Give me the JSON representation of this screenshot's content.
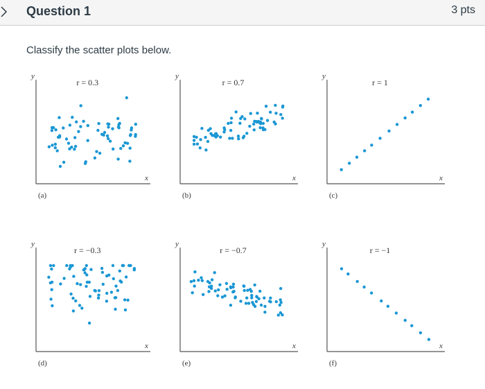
{
  "question": {
    "title": "Question 1",
    "points": "3 pts",
    "prompt": "Classify the scatter plots below."
  },
  "colors": {
    "dot": "#1a97d4",
    "axis": "#555555",
    "header_bg": "#f5f5f5",
    "text": "#2d3b45"
  },
  "icons": {
    "collapse": "chevron-right-icon"
  },
  "chart_data": [
    {
      "type": "scatter",
      "panel_label": "(a)",
      "r_label": "r = 0.3",
      "y_axis_label": "y",
      "x_axis_label": "x",
      "correlation": 0.3
    },
    {
      "type": "scatter",
      "panel_label": "(b)",
      "r_label": "r = 0.7",
      "y_axis_label": "y",
      "x_axis_label": "x",
      "correlation": 0.7
    },
    {
      "type": "scatter",
      "panel_label": "(c)",
      "r_label": "r = 1",
      "y_axis_label": "y",
      "x_axis_label": "x",
      "correlation": 1
    },
    {
      "type": "scatter",
      "panel_label": "(d)",
      "r_label": "r = −0.3",
      "y_axis_label": "y",
      "x_axis_label": "x",
      "correlation": -0.3
    },
    {
      "type": "scatter",
      "panel_label": "(e)",
      "r_label": "r = −0.7",
      "y_axis_label": "y",
      "x_axis_label": "x",
      "correlation": -0.7
    },
    {
      "type": "scatter",
      "panel_label": "(f)",
      "r_label": "r = −1",
      "y_axis_label": "y",
      "x_axis_label": "x",
      "correlation": -1
    }
  ]
}
